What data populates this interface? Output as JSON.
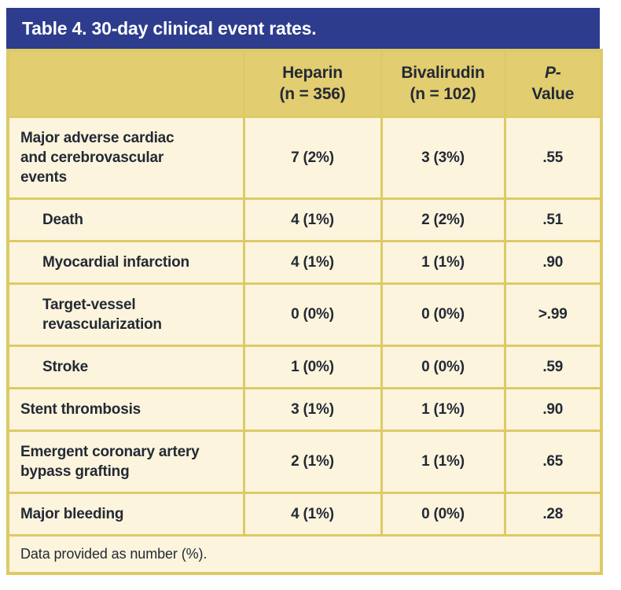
{
  "title": "Table 4. 30-day clinical event rates.",
  "columns": {
    "heparin": {
      "name": "Heparin",
      "n": "(n = 356)"
    },
    "bivalirudin": {
      "name": "Bivalirudin",
      "n": "(n = 102)"
    },
    "pvalue": {
      "line1": "P-",
      "line2": "Value"
    }
  },
  "rows": [
    {
      "label": "Major adverse cardiac and cerebrovascular events",
      "indent": false,
      "heparin": "7 (2%)",
      "bivalirudin": "3 (3%)",
      "p": ".55"
    },
    {
      "label": "Death",
      "indent": true,
      "heparin": "4 (1%)",
      "bivalirudin": "2 (2%)",
      "p": ".51"
    },
    {
      "label": "Myocardial infarction",
      "indent": true,
      "heparin": "4 (1%)",
      "bivalirudin": "1 (1%)",
      "p": ".90"
    },
    {
      "label": "Target-vessel revascularization",
      "indent": true,
      "heparin": "0 (0%)",
      "bivalirudin": "0 (0%)",
      "p": ">.99"
    },
    {
      "label": "Stroke",
      "indent": true,
      "heparin": "1 (0%)",
      "bivalirudin": "0 (0%)",
      "p": ".59"
    },
    {
      "label": "Stent thrombosis",
      "indent": false,
      "heparin": "3 (1%)",
      "bivalirudin": "1 (1%)",
      "p": ".90"
    },
    {
      "label": "Emergent coronary artery bypass grafting",
      "indent": false,
      "heparin": "2 (1%)",
      "bivalirudin": "1 (1%)",
      "p": ".65"
    },
    {
      "label": "Major bleeding",
      "indent": false,
      "heparin": "4 (1%)",
      "bivalirudin": "0 (0%)",
      "p": ".28"
    }
  ],
  "footnote": "Data provided as number (%).",
  "colors": {
    "title_bar_blue": "#2d3c8c",
    "header_band_gold": "#e2cd70",
    "border_gold": "#ddca67",
    "row_cream": "#fdf4dd",
    "text_ink": "#232a35",
    "title_text": "#ffffff"
  }
}
